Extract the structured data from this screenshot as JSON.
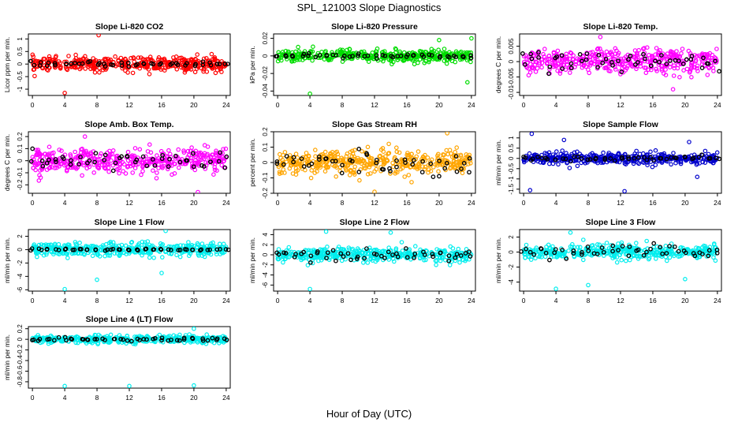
{
  "figure": {
    "title": "SPL_121003  Slope Diagnostics",
    "xlabel": "Hour of Day (UTC)"
  },
  "chart_data": [
    {
      "type": "scatter",
      "title": "Slope Li-820 CO2",
      "ylabel": "Licor ppm per min.",
      "color": "#ff0000",
      "ylim": [
        -1.25,
        1.2
      ],
      "yticks": [
        -1,
        -0.5,
        0,
        0.5,
        1
      ],
      "xlim": [
        -0.5,
        24.5
      ],
      "xticks": [
        0,
        4,
        8,
        12,
        16,
        20,
        24
      ],
      "spread": 0.25,
      "black_spread": 0.1,
      "outliers": [
        [
          8.2,
          1.15
        ],
        [
          4.0,
          -1.15
        ]
      ]
    },
    {
      "type": "scatter",
      "title": "Slope Li-820 Pressure",
      "ylabel": "kPa per min.",
      "color": "#00dd00",
      "ylim": [
        -0.045,
        0.025
      ],
      "yticks": [
        -0.04,
        -0.02,
        0.0,
        0.02
      ],
      "xlim": [
        -0.5,
        24.5
      ],
      "xticks": [
        0,
        4,
        8,
        12,
        16,
        20,
        24
      ],
      "spread": 0.006,
      "black_spread": 0.003,
      "outliers": [
        [
          4.0,
          -0.043
        ],
        [
          20.0,
          0.018
        ],
        [
          24.0,
          0.02
        ],
        [
          23.5,
          -0.03
        ]
      ]
    },
    {
      "type": "scatter",
      "title": "Slope Li-820 Temp.",
      "ylabel": "degrees C per min.",
      "color": "#ff00ff",
      "ylim": [
        -0.011,
        0.009
      ],
      "yticks": [
        -0.01,
        -0.005,
        0.0,
        0.005
      ],
      "xlim": [
        -0.5,
        24.5
      ],
      "xticks": [
        0,
        4,
        8,
        12,
        16,
        20,
        24
      ],
      "spread": 0.0035,
      "black_spread": 0.003,
      "outliers": [
        [
          18.5,
          -0.009
        ],
        [
          9.5,
          0.008
        ]
      ]
    },
    {
      "type": "scatter",
      "title": "Slope Amb. Box Temp.",
      "ylabel": "degrees C per min.",
      "color": "#ff00ff",
      "ylim": [
        -0.27,
        0.24
      ],
      "yticks": [
        -0.2,
        -0.1,
        0.0,
        0.1,
        0.2
      ],
      "xlim": [
        -0.5,
        24.5
      ],
      "xticks": [
        0,
        4,
        8,
        12,
        16,
        20,
        24
      ],
      "spread": 0.09,
      "black_spread": 0.08,
      "outliers": [
        [
          20.5,
          -0.26
        ],
        [
          6.5,
          0.2
        ]
      ]
    },
    {
      "type": "scatter",
      "title": "Slope Gas Stream RH",
      "ylabel": "percent per min.",
      "color": "#ffa500",
      "ylim": [
        -0.2,
        0.2
      ],
      "yticks": [
        -0.2,
        -0.1,
        0.0,
        0.1,
        0.2
      ],
      "xlim": [
        -0.5,
        24.5
      ],
      "xticks": [
        0,
        4,
        8,
        12,
        16,
        20,
        24
      ],
      "spread": 0.07,
      "black_spread": 0.07,
      "outliers": [
        [
          12.0,
          -0.19
        ],
        [
          21.0,
          0.19
        ]
      ]
    },
    {
      "type": "scatter",
      "title": "Slope Sample Flow",
      "ylabel": "ml/min per min.",
      "color": "#0000cc",
      "ylim": [
        -1.7,
        1.3
      ],
      "yticks": [
        -1.5,
        -1,
        -0.5,
        0,
        0.5,
        1
      ],
      "xlim": [
        -0.5,
        24.5
      ],
      "xticks": [
        0,
        4,
        8,
        12,
        16,
        20,
        24
      ],
      "spread": 0.25,
      "black_spread": 0.1,
      "outliers": [
        [
          0.8,
          -1.55
        ],
        [
          12.5,
          -1.6
        ],
        [
          1.0,
          1.2
        ],
        [
          5.0,
          0.9
        ],
        [
          20.5,
          0.8
        ],
        [
          21.5,
          -0.9
        ]
      ]
    },
    {
      "type": "scatter",
      "title": "Slope Line 1 Flow",
      "ylabel": "ml/min per min.",
      "color": "#00eeee",
      "ylim": [
        -6.2,
        3.0
      ],
      "yticks": [
        -6,
        -4,
        -2,
        0,
        2
      ],
      "xlim": [
        -0.5,
        24.5
      ],
      "xticks": [
        0,
        4,
        8,
        12,
        16,
        20,
        24
      ],
      "spread": 0.9,
      "black_spread": 0.15,
      "outliers": [
        [
          4.0,
          -5.9
        ],
        [
          8.0,
          -4.5
        ],
        [
          16.0,
          -3.5
        ],
        [
          16.5,
          2.8
        ]
      ]
    },
    {
      "type": "scatter",
      "title": "Slope Line 2 Flow",
      "ylabel": "ml/min per min.",
      "color": "#00eeee",
      "ylim": [
        -7.2,
        5.0
      ],
      "yticks": [
        -6,
        -4,
        -2,
        0,
        2,
        4
      ],
      "xlim": [
        -0.5,
        24.5
      ],
      "xticks": [
        0,
        4,
        8,
        12,
        16,
        20,
        24
      ],
      "spread": 1.2,
      "black_spread": 1.2,
      "outliers": [
        [
          4.0,
          -6.8
        ],
        [
          6.0,
          4.6
        ],
        [
          14.0,
          4.4
        ]
      ]
    },
    {
      "type": "scatter",
      "title": "Slope Line 3 Flow",
      "ylabel": "ml/min per min.",
      "color": "#00eeee",
      "ylim": [
        -5.2,
        3.0
      ],
      "yticks": [
        -4,
        -2,
        0,
        2
      ],
      "xlim": [
        -0.5,
        24.5
      ],
      "xticks": [
        0,
        4,
        8,
        12,
        16,
        20,
        24
      ],
      "spread": 0.9,
      "black_spread": 0.9,
      "outliers": [
        [
          4.0,
          -4.9
        ],
        [
          8.0,
          -4.4
        ],
        [
          20.0,
          -3.6
        ],
        [
          5.8,
          2.6
        ]
      ]
    },
    {
      "type": "scatter",
      "title": "Slope Line 4 (LT) Flow",
      "ylabel": "ml/min per min.",
      "color": "#00eeee",
      "ylim": [
        -0.92,
        0.24
      ],
      "yticks": [
        -0.8,
        -0.6,
        -0.4,
        -0.2,
        0.0,
        0.2
      ],
      "xlim": [
        -0.5,
        24.5
      ],
      "xticks": [
        0,
        4,
        8,
        12,
        16,
        20,
        24
      ],
      "spread": 0.06,
      "black_spread": 0.04,
      "outliers": [
        [
          4.0,
          -0.88
        ],
        [
          12.0,
          -0.88
        ],
        [
          20.0,
          -0.87
        ],
        [
          20.0,
          0.2
        ]
      ]
    }
  ]
}
